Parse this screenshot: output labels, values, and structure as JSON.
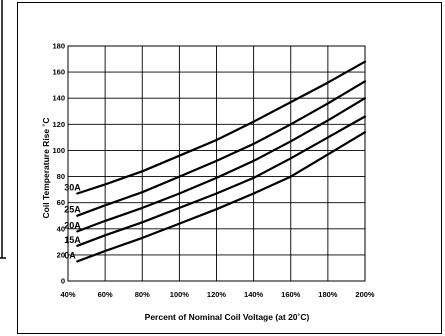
{
  "chart_data": {
    "type": "line",
    "title": "",
    "xlabel": "Percent of Nominal Coil Voltage (at 20˚C)",
    "ylabel": "Coil Temperature Rise ˚C",
    "xlim": [
      40,
      200
    ],
    "ylim": [
      0,
      180
    ],
    "xticks": [
      40,
      60,
      80,
      100,
      120,
      140,
      160,
      180,
      200
    ],
    "yticks": [
      0,
      20,
      40,
      60,
      80,
      100,
      120,
      140,
      160,
      180
    ],
    "xtick_labels": [
      "40%",
      "60%",
      "80%",
      "100%",
      "120%",
      "140%",
      "160%",
      "180%",
      "200%"
    ],
    "ytick_labels": [
      "0",
      "20",
      "40",
      "60",
      "80",
      "100",
      "120",
      "140",
      "160",
      "180"
    ],
    "grid": true,
    "legend": "none",
    "series": [
      {
        "name": "30A",
        "x": [
          45,
          60,
          80,
          100,
          120,
          140,
          160,
          180,
          200
        ],
        "y": [
          67,
          74,
          84,
          96,
          108,
          122,
          137,
          152,
          168
        ]
      },
      {
        "name": "25A",
        "x": [
          45,
          60,
          80,
          100,
          120,
          140,
          160,
          180,
          200
        ],
        "y": [
          50,
          58,
          68,
          80,
          92,
          105,
          120,
          136,
          153
        ]
      },
      {
        "name": "20A",
        "x": [
          45,
          60,
          80,
          100,
          120,
          140,
          160,
          180,
          200
        ],
        "y": [
          38,
          46,
          56,
          67,
          79,
          92,
          107,
          123,
          140
        ]
      },
      {
        "name": "15A",
        "x": [
          45,
          60,
          80,
          100,
          120,
          140,
          160,
          180,
          200
        ],
        "y": [
          27,
          35,
          45,
          56,
          67,
          79,
          94,
          110,
          126
        ]
      },
      {
        "name": "0A",
        "x": [
          45,
          60,
          80,
          100,
          120,
          140,
          160,
          180,
          200
        ],
        "y": [
          15,
          23,
          33,
          44,
          55,
          67,
          80,
          97,
          114
        ]
      }
    ]
  },
  "colors": {
    "line": "#000000",
    "grid": "#000000",
    "background": "#ffffff"
  }
}
